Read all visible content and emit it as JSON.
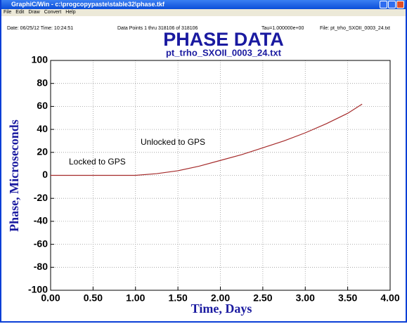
{
  "window": {
    "title": "GraphiC/Win - c:\\progcopypaste\\stable32\\phase.tkf",
    "menu": [
      "File",
      "Edit",
      "Draw",
      "Convert",
      "Help"
    ]
  },
  "header": {
    "date": "Date: 06/25/12  Time: 10:24:51",
    "points": "Data Points 1 thru 318106 of 318106",
    "tau": "Tau=1.000000e+00",
    "file": "File: pt_trho_SXOII_0003_24.txt"
  },
  "chart_data": {
    "type": "line",
    "title": "PHASE DATA",
    "subtitle": "pt_trho_SXOII_0003_24.txt",
    "x_label": "Time, Days",
    "y_label": "Phase, Microseconds",
    "annotations": [
      "Locked to GPS",
      "Unlocked to GPS"
    ],
    "x": [
      0,
      0.5,
      1.0,
      1.25,
      1.5,
      1.75,
      2.0,
      2.25,
      2.5,
      2.75,
      3.0,
      3.25,
      3.5,
      3.67
    ],
    "series": [
      {
        "name": "Phase",
        "color": "#a52a2a",
        "values": [
          0,
          0,
          0,
          1.5,
          4,
          8,
          13,
          18,
          24,
          30,
          37,
          45,
          54,
          62
        ]
      }
    ],
    "xlim": [
      0,
      4
    ],
    "ylim": [
      -100,
      100
    ],
    "xticks": [
      {
        "value": 0,
        "label": "0.00"
      },
      {
        "value": 0.5,
        "label": "0.50"
      },
      {
        "value": 1,
        "label": "1.00"
      },
      {
        "value": 1.5,
        "label": "1.50"
      },
      {
        "value": 2,
        "label": "2.00"
      },
      {
        "value": 2.5,
        "label": "2.50"
      },
      {
        "value": 3,
        "label": "3.00"
      },
      {
        "value": 3.5,
        "label": "3.50"
      },
      {
        "value": 4,
        "label": "4.00"
      }
    ],
    "yticks": [
      -100,
      -80,
      -60,
      -40,
      -20,
      0,
      20,
      40,
      60,
      80,
      100
    ],
    "grid": true
  }
}
